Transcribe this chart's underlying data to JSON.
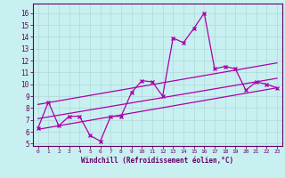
{
  "xlabel": "Windchill (Refroidissement éolien,°C)",
  "bg_color": "#c8f0f0",
  "line_color": "#aa00aa",
  "grid_color": "#b0d8d8",
  "xlim": [
    -0.5,
    23.5
  ],
  "ylim": [
    4.8,
    16.8
  ],
  "xticks": [
    0,
    1,
    2,
    3,
    4,
    5,
    6,
    7,
    8,
    9,
    10,
    11,
    12,
    13,
    14,
    15,
    16,
    17,
    18,
    19,
    20,
    21,
    22,
    23
  ],
  "yticks": [
    5,
    6,
    7,
    8,
    9,
    10,
    11,
    12,
    13,
    14,
    15,
    16
  ],
  "data_x": [
    0,
    1,
    2,
    3,
    4,
    5,
    6,
    7,
    8,
    9,
    10,
    11,
    12,
    13,
    14,
    15,
    16,
    17,
    18,
    19,
    20,
    21,
    22,
    23
  ],
  "data_y": [
    6.3,
    8.5,
    6.5,
    7.3,
    7.3,
    5.7,
    5.2,
    7.3,
    7.3,
    9.3,
    10.3,
    10.2,
    9.0,
    13.9,
    13.5,
    14.7,
    16.0,
    11.3,
    11.5,
    11.3,
    9.5,
    10.2,
    10.0,
    9.7
  ],
  "trend1_x": [
    0,
    23
  ],
  "trend1_y": [
    6.2,
    9.7
  ],
  "trend2_x": [
    0,
    23
  ],
  "trend2_y": [
    7.1,
    10.5
  ],
  "trend3_x": [
    0,
    23
  ],
  "trend3_y": [
    8.3,
    11.8
  ]
}
